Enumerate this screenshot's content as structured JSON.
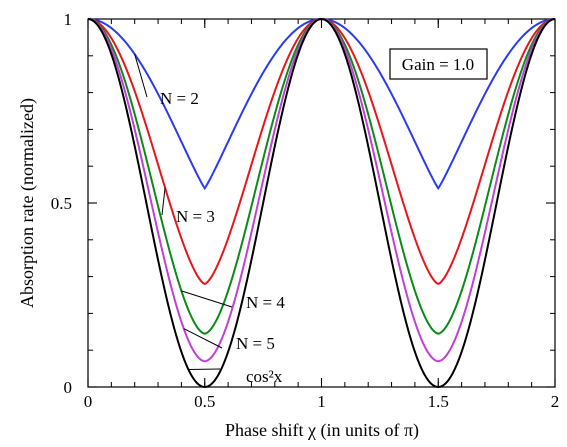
{
  "chart_data": {
    "type": "line",
    "xlabel": "Phase shift χ (in units of π)",
    "ylabel": "Absorption rate (normalized)",
    "xlim": [
      0,
      2
    ],
    "ylim": [
      0,
      1
    ],
    "x_ticks": [
      "0",
      "0.5",
      "1",
      "1.5",
      "2"
    ],
    "y_ticks": [
      "0",
      "0.5",
      "1"
    ],
    "annotation": "Gain = 1.0",
    "grid": false,
    "series": [
      {
        "name": "N = 2",
        "color": "#2a3cf0",
        "min_value": 0.54
      },
      {
        "name": "N = 3",
        "color": "#e8161b",
        "min_value": 0.28
      },
      {
        "name": "N = 4",
        "color": "#0b8a19",
        "min_value": 0.145
      },
      {
        "name": "N = 5",
        "color": "#c23fd8",
        "min_value": 0.07
      },
      {
        "name": "cos²x",
        "color": "#000000",
        "min_value": 0.0
      }
    ]
  }
}
